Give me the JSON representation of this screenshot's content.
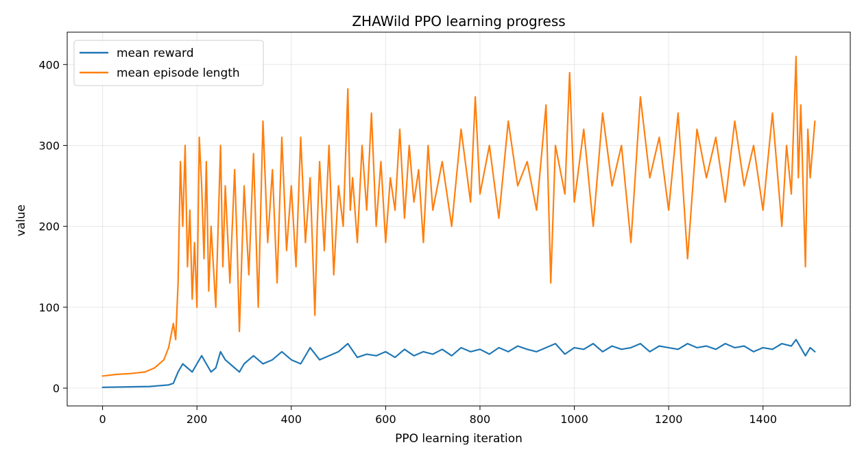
{
  "chart_data": {
    "type": "line",
    "title": "ZHAWild PPO learning progress",
    "xlabel": "PPO learning iteration",
    "ylabel": "value",
    "xlim": [
      -75,
      1585
    ],
    "ylim": [
      -22,
      440
    ],
    "xticks": [
      0,
      200,
      400,
      600,
      800,
      1000,
      1200,
      1400
    ],
    "yticks": [
      0,
      100,
      200,
      300,
      400
    ],
    "grid": true,
    "legend": "top-left",
    "series": [
      {
        "name": "mean reward",
        "color": "#1f77b4",
        "x": [
          0,
          100,
          140,
          150,
          160,
          170,
          180,
          190,
          200,
          210,
          220,
          230,
          240,
          250,
          260,
          270,
          280,
          290,
          300,
          320,
          340,
          360,
          380,
          400,
          420,
          440,
          460,
          480,
          500,
          520,
          540,
          560,
          580,
          600,
          620,
          640,
          660,
          680,
          700,
          720,
          740,
          760,
          780,
          800,
          820,
          840,
          860,
          880,
          900,
          920,
          940,
          960,
          980,
          1000,
          1020,
          1040,
          1060,
          1080,
          1100,
          1120,
          1140,
          1160,
          1180,
          1200,
          1220,
          1240,
          1260,
          1280,
          1300,
          1320,
          1340,
          1360,
          1380,
          1400,
          1420,
          1440,
          1460,
          1470,
          1480,
          1490,
          1500,
          1510
        ],
        "values": [
          1,
          2,
          4,
          6,
          20,
          30,
          25,
          20,
          30,
          40,
          30,
          20,
          25,
          45,
          35,
          30,
          25,
          20,
          30,
          40,
          30,
          35,
          45,
          35,
          30,
          50,
          35,
          40,
          45,
          55,
          38,
          42,
          40,
          45,
          38,
          48,
          40,
          45,
          42,
          48,
          40,
          50,
          45,
          48,
          42,
          50,
          45,
          52,
          48,
          45,
          50,
          55,
          42,
          50,
          48,
          55,
          45,
          52,
          48,
          50,
          55,
          45,
          52,
          50,
          48,
          55,
          50,
          52,
          48,
          55,
          50,
          52,
          45,
          50,
          48,
          55,
          52,
          60,
          50,
          40,
          50,
          45
        ]
      },
      {
        "name": "mean episode length",
        "color": "#ff7f0e",
        "x": [
          0,
          30,
          60,
          90,
          110,
          130,
          140,
          150,
          155,
          160,
          165,
          170,
          175,
          180,
          185,
          190,
          195,
          200,
          205,
          210,
          215,
          220,
          225,
          230,
          240,
          250,
          255,
          260,
          270,
          280,
          285,
          290,
          300,
          310,
          320,
          330,
          340,
          350,
          360,
          370,
          380,
          390,
          400,
          410,
          420,
          430,
          440,
          450,
          455,
          460,
          470,
          480,
          490,
          500,
          510,
          520,
          525,
          530,
          540,
          550,
          560,
          570,
          580,
          590,
          600,
          610,
          620,
          630,
          640,
          650,
          660,
          670,
          680,
          690,
          700,
          720,
          740,
          760,
          780,
          790,
          800,
          820,
          840,
          860,
          880,
          900,
          920,
          940,
          950,
          960,
          980,
          990,
          1000,
          1020,
          1040,
          1060,
          1080,
          1100,
          1120,
          1140,
          1160,
          1180,
          1200,
          1220,
          1240,
          1260,
          1280,
          1300,
          1320,
          1340,
          1360,
          1380,
          1400,
          1420,
          1440,
          1450,
          1460,
          1470,
          1475,
          1480,
          1490,
          1495,
          1500,
          1510
        ],
        "values": [
          15,
          17,
          18,
          20,
          25,
          35,
          50,
          80,
          60,
          130,
          280,
          200,
          300,
          150,
          220,
          110,
          180,
          100,
          310,
          250,
          160,
          280,
          120,
          200,
          100,
          300,
          150,
          250,
          130,
          270,
          180,
          70,
          250,
          140,
          290,
          100,
          330,
          180,
          270,
          130,
          310,
          170,
          250,
          150,
          310,
          180,
          260,
          90,
          200,
          280,
          170,
          300,
          140,
          250,
          200,
          370,
          220,
          260,
          180,
          300,
          220,
          340,
          200,
          280,
          180,
          260,
          220,
          320,
          210,
          300,
          230,
          270,
          180,
          300,
          220,
          280,
          200,
          320,
          230,
          360,
          240,
          300,
          210,
          330,
          250,
          280,
          220,
          350,
          130,
          300,
          240,
          390,
          230,
          320,
          200,
          340,
          250,
          300,
          180,
          360,
          260,
          310,
          220,
          340,
          160,
          320,
          260,
          310,
          230,
          330,
          250,
          300,
          220,
          340,
          200,
          300,
          240,
          410,
          260,
          350,
          150,
          320,
          260,
          330
        ]
      }
    ]
  }
}
